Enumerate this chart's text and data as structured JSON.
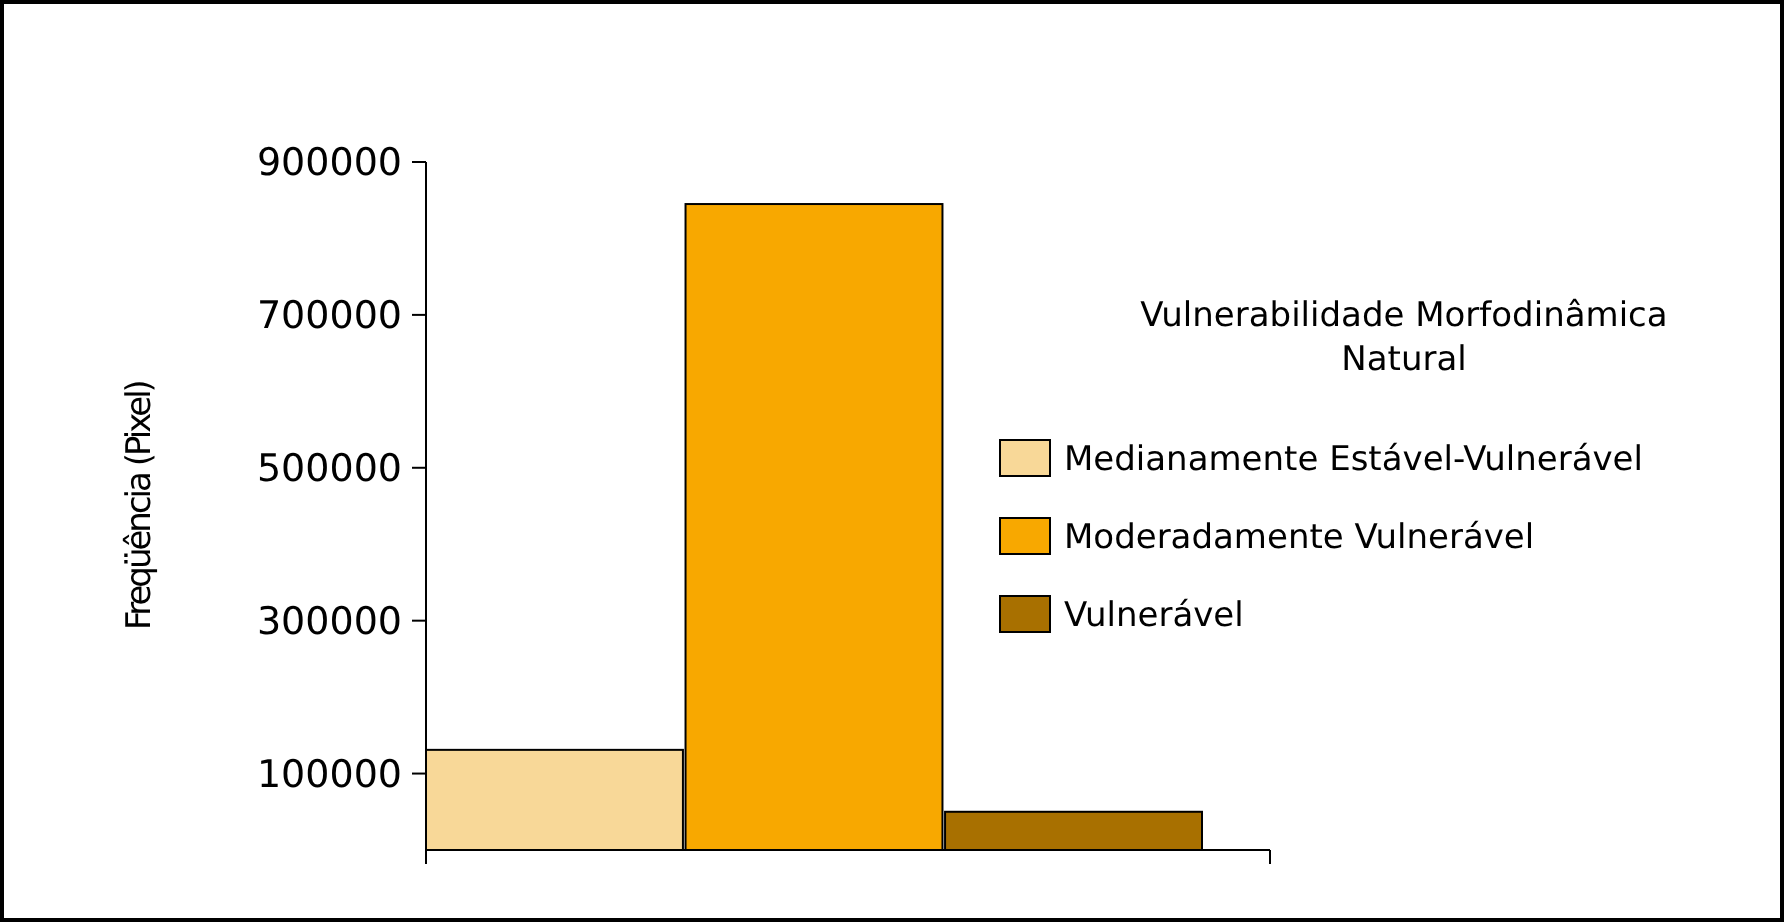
{
  "chart_data": {
    "type": "bar",
    "ylabel": "Freqüência (Pixel)",
    "legend_title": "Vulnerabilidade Morfodinâmica Natural",
    "legend": "right",
    "categories": [
      null,
      null,
      null
    ],
    "series": [
      {
        "name": "Medianamente Estável-Vulnerável",
        "color": "#f8d898",
        "values": [
          131000,
          null,
          null
        ]
      },
      {
        "name": "Moderadamente Vulnerável",
        "color": "#f8a800",
        "values": [
          null,
          845000,
          null
        ]
      },
      {
        "name": "Vulnerável",
        "color": "#a87000",
        "values": [
          null,
          null,
          50000
        ]
      }
    ],
    "ylim": [
      0,
      900000
    ],
    "yticks": [
      100000,
      300000,
      500000,
      700000,
      900000
    ],
    "grid": false
  }
}
